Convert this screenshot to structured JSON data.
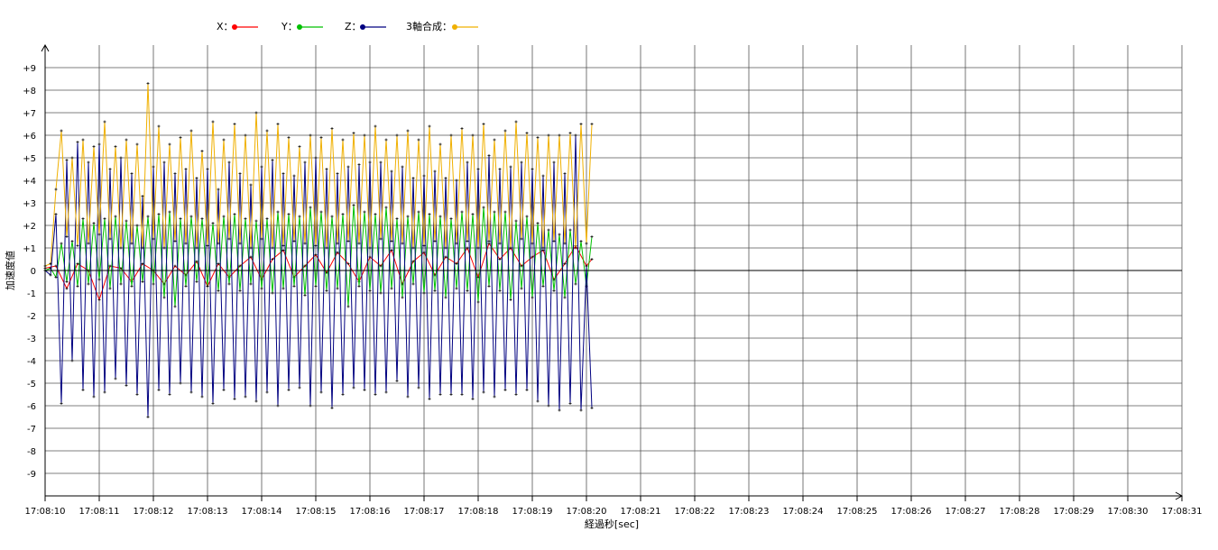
{
  "chart_data": {
    "type": "line",
    "xlabel": "経過秒[sec]",
    "ylabel": "加速度値",
    "ylim": [
      -10,
      10
    ],
    "x_ticks": [
      "17:08:10",
      "17:08:11",
      "17:08:12",
      "17:08:13",
      "17:08:14",
      "17:08:15",
      "17:08:16",
      "17:08:17",
      "17:08:18",
      "17:08:19",
      "17:08:20",
      "17:08:21",
      "17:08:22",
      "17:08:23",
      "17:08:24",
      "17:08:25",
      "17:08:26",
      "17:08:27",
      "17:08:28",
      "17:08:29",
      "17:08:30",
      "17:08:31"
    ],
    "y_ticks": [
      "+9",
      "+8",
      "+7",
      "+6",
      "+5",
      "+4",
      "+3",
      "+2",
      "+1",
      "0",
      "-1",
      "-2",
      "-3",
      "-4",
      "-5",
      "-6",
      "-7",
      "-8",
      "-9"
    ],
    "grid": true,
    "legend_position": "top",
    "series": [
      {
        "name": "X：",
        "color": "#ff0000",
        "x": [
          10.0,
          10.2,
          10.4,
          10.6,
          10.8,
          11.0,
          11.2,
          11.4,
          11.6,
          11.8,
          12.0,
          12.2,
          12.4,
          12.6,
          12.8,
          13.0,
          13.2,
          13.4,
          13.6,
          13.8,
          14.0,
          14.2,
          14.4,
          14.6,
          14.8,
          15.0,
          15.2,
          15.4,
          15.6,
          15.8,
          16.0,
          16.2,
          16.4,
          16.6,
          16.8,
          17.0,
          17.2,
          17.4,
          17.6,
          17.8,
          18.0,
          18.2,
          18.4,
          18.6,
          18.8,
          19.0,
          19.2,
          19.4,
          19.6,
          19.8,
          20.0,
          20.1
        ],
        "values": [
          0.1,
          0.2,
          -0.8,
          0.3,
          0.0,
          -1.3,
          0.2,
          0.1,
          -0.5,
          0.3,
          0.0,
          -0.6,
          0.2,
          -0.2,
          0.4,
          -0.7,
          0.3,
          -0.3,
          0.2,
          0.6,
          -0.4,
          0.5,
          0.9,
          -0.3,
          0.2,
          0.7,
          -0.1,
          0.8,
          0.3,
          -0.5,
          0.6,
          0.2,
          0.9,
          -0.6,
          0.4,
          0.8,
          -0.2,
          0.6,
          0.3,
          1.0,
          -0.3,
          1.2,
          0.5,
          1.0,
          0.2,
          0.6,
          0.9,
          -0.4,
          0.3,
          1.1,
          0.2,
          0.5
        ]
      },
      {
        "name": "Y：",
        "color": "#00c000",
        "x": [
          10.0,
          10.1,
          10.2,
          10.3,
          10.4,
          10.5,
          10.6,
          10.7,
          10.8,
          10.9,
          11.0,
          11.1,
          11.2,
          11.3,
          11.4,
          11.5,
          11.6,
          11.7,
          11.8,
          11.9,
          12.0,
          12.1,
          12.2,
          12.3,
          12.4,
          12.5,
          12.6,
          12.7,
          12.8,
          12.9,
          13.0,
          13.1,
          13.2,
          13.3,
          13.4,
          13.5,
          13.6,
          13.7,
          13.8,
          13.9,
          14.0,
          14.1,
          14.2,
          14.3,
          14.4,
          14.5,
          14.6,
          14.7,
          14.8,
          14.9,
          15.0,
          15.1,
          15.2,
          15.3,
          15.4,
          15.5,
          15.6,
          15.7,
          15.8,
          15.9,
          16.0,
          16.1,
          16.2,
          16.3,
          16.4,
          16.5,
          16.6,
          16.7,
          16.8,
          16.9,
          17.0,
          17.1,
          17.2,
          17.3,
          17.4,
          17.5,
          17.6,
          17.7,
          17.8,
          17.9,
          18.0,
          18.1,
          18.2,
          18.3,
          18.4,
          18.5,
          18.6,
          18.7,
          18.8,
          18.9,
          19.0,
          19.1,
          19.2,
          19.3,
          19.4,
          19.5,
          19.6,
          19.7,
          19.8,
          19.9,
          20.0,
          20.1
        ],
        "values": [
          0.0,
          0.1,
          -0.3,
          1.2,
          -0.5,
          1.3,
          -0.7,
          2.3,
          -0.6,
          2.1,
          -0.4,
          2.3,
          -0.8,
          2.4,
          -0.6,
          2.2,
          -0.7,
          2.0,
          -0.5,
          2.4,
          -0.6,
          2.5,
          -1.2,
          2.6,
          -1.6,
          2.3,
          -0.7,
          2.4,
          -0.5,
          2.3,
          -0.7,
          2.1,
          -0.9,
          2.4,
          -0.6,
          2.5,
          -0.9,
          2.3,
          -0.6,
          2.2,
          -0.8,
          2.3,
          -1.0,
          2.6,
          -0.8,
          2.5,
          -0.7,
          2.4,
          -1.1,
          2.8,
          -0.7,
          2.6,
          -0.9,
          2.4,
          -0.8,
          2.5,
          -1.6,
          2.9,
          -0.7,
          2.6,
          -0.9,
          2.5,
          -1.0,
          2.8,
          -0.8,
          2.3,
          -1.2,
          2.4,
          -0.6,
          2.6,
          -1.0,
          2.5,
          -0.9,
          2.4,
          -1.2,
          2.3,
          -0.8,
          2.6,
          -0.9,
          2.5,
          -1.4,
          2.8,
          -0.7,
          2.6,
          -0.9,
          2.6,
          -1.3,
          2.2,
          -0.8,
          2.4,
          -1.2,
          2.1,
          -0.7,
          1.8,
          -0.9,
          1.6,
          -1.2,
          1.8,
          -0.6,
          1.3,
          -0.7,
          1.5
        ]
      },
      {
        "name": "Z：",
        "color": "#000080",
        "x": [
          10.0,
          10.1,
          10.2,
          10.3,
          10.4,
          10.5,
          10.6,
          10.7,
          10.8,
          10.9,
          11.0,
          11.1,
          11.2,
          11.3,
          11.4,
          11.5,
          11.6,
          11.7,
          11.8,
          11.9,
          12.0,
          12.1,
          12.2,
          12.3,
          12.4,
          12.5,
          12.6,
          12.7,
          12.8,
          12.9,
          13.0,
          13.1,
          13.2,
          13.3,
          13.4,
          13.5,
          13.6,
          13.7,
          13.8,
          13.9,
          14.0,
          14.1,
          14.2,
          14.3,
          14.4,
          14.5,
          14.6,
          14.7,
          14.8,
          14.9,
          15.0,
          15.1,
          15.2,
          15.3,
          15.4,
          15.5,
          15.6,
          15.7,
          15.8,
          15.9,
          16.0,
          16.1,
          16.2,
          16.3,
          16.4,
          16.5,
          16.6,
          16.7,
          16.8,
          16.9,
          17.0,
          17.1,
          17.2,
          17.3,
          17.4,
          17.5,
          17.6,
          17.7,
          17.8,
          17.9,
          18.0,
          18.1,
          18.2,
          18.3,
          18.4,
          18.5,
          18.6,
          18.7,
          18.8,
          18.9,
          19.0,
          19.1,
          19.2,
          19.3,
          19.4,
          19.5,
          19.6,
          19.7,
          19.8,
          19.9,
          20.0,
          20.1
        ],
        "values": [
          0.0,
          -0.2,
          2.5,
          -5.9,
          4.9,
          -4.0,
          5.7,
          -5.3,
          4.8,
          -5.6,
          5.6,
          -5.4,
          4.5,
          -4.8,
          5.0,
          -5.1,
          4.3,
          -5.5,
          3.3,
          -6.5,
          4.6,
          -5.3,
          4.8,
          -5.5,
          4.3,
          -5.0,
          4.5,
          -5.4,
          4.1,
          -5.6,
          4.5,
          -5.9,
          3.6,
          -5.3,
          4.8,
          -5.7,
          4.3,
          -5.6,
          3.8,
          -5.8,
          4.6,
          -5.4,
          4.9,
          -6.0,
          4.3,
          -5.3,
          4.2,
          -5.2,
          4.8,
          -6.0,
          5.0,
          -5.4,
          4.5,
          -6.1,
          4.3,
          -5.5,
          4.6,
          -5.2,
          4.7,
          -5.3,
          4.8,
          -5.5,
          4.8,
          -5.4,
          4.4,
          -4.9,
          4.6,
          -5.6,
          4.1,
          -5.2,
          4.2,
          -5.7,
          4.4,
          -5.5,
          4.1,
          -5.5,
          4.0,
          -5.5,
          4.8,
          -5.7,
          4.5,
          -5.4,
          5.1,
          -5.6,
          4.5,
          -5.3,
          4.6,
          -5.5,
          4.8,
          -5.3,
          4.5,
          -5.8,
          4.2,
          -6.0,
          4.8,
          -6.2,
          4.3,
          -5.9,
          6.0,
          -6.2,
          0.2,
          -6.1
        ]
      },
      {
        "name": "3軸合成：",
        "color": "#f0b000",
        "x": [
          10.0,
          10.1,
          10.2,
          10.3,
          10.4,
          10.5,
          10.6,
          10.7,
          10.8,
          10.9,
          11.0,
          11.1,
          11.2,
          11.3,
          11.4,
          11.5,
          11.6,
          11.7,
          11.8,
          11.9,
          12.0,
          12.1,
          12.2,
          12.3,
          12.4,
          12.5,
          12.6,
          12.7,
          12.8,
          12.9,
          13.0,
          13.1,
          13.2,
          13.3,
          13.4,
          13.5,
          13.6,
          13.7,
          13.8,
          13.9,
          14.0,
          14.1,
          14.2,
          14.3,
          14.4,
          14.5,
          14.6,
          14.7,
          14.8,
          14.9,
          15.0,
          15.1,
          15.2,
          15.3,
          15.4,
          15.5,
          15.6,
          15.7,
          15.8,
          15.9,
          16.0,
          16.1,
          16.2,
          16.3,
          16.4,
          16.5,
          16.6,
          16.7,
          16.8,
          16.9,
          17.0,
          17.1,
          17.2,
          17.3,
          17.4,
          17.5,
          17.6,
          17.7,
          17.8,
          17.9,
          18.0,
          18.1,
          18.2,
          18.3,
          18.4,
          18.5,
          18.6,
          18.7,
          18.8,
          18.9,
          19.0,
          19.1,
          19.2,
          19.3,
          19.4,
          19.5,
          19.6,
          19.7,
          19.8,
          19.9,
          20.0,
          20.1
        ],
        "values": [
          0.2,
          0.3,
          3.6,
          6.2,
          1.5,
          5.0,
          1.1,
          5.8,
          1.2,
          5.5,
          1.6,
          6.6,
          1.4,
          5.5,
          1.0,
          5.8,
          1.2,
          5.6,
          1.0,
          8.3,
          1.4,
          6.4,
          1.0,
          5.6,
          1.3,
          5.9,
          1.2,
          6.2,
          1.0,
          5.3,
          1.1,
          6.6,
          1.2,
          5.8,
          1.4,
          6.5,
          1.2,
          6.0,
          1.0,
          7.0,
          1.4,
          6.2,
          1.0,
          6.5,
          1.1,
          5.9,
          1.3,
          5.5,
          1.2,
          6.0,
          1.1,
          5.9,
          1.0,
          6.3,
          1.2,
          5.8,
          1.3,
          6.1,
          1.2,
          6.0,
          1.0,
          6.4,
          1.4,
          5.8,
          1.3,
          6.0,
          1.2,
          6.2,
          1.0,
          5.8,
          1.1,
          6.4,
          1.3,
          5.6,
          1.0,
          6.0,
          1.2,
          6.3,
          1.3,
          6.0,
          1.0,
          6.5,
          1.3,
          5.8,
          1.2,
          6.2,
          1.0,
          6.6,
          1.4,
          6.1,
          1.2,
          5.9,
          1.0,
          6.0,
          1.3,
          6.0,
          1.2,
          6.1,
          1.0,
          6.5,
          1.2,
          6.5
        ]
      }
    ]
  }
}
